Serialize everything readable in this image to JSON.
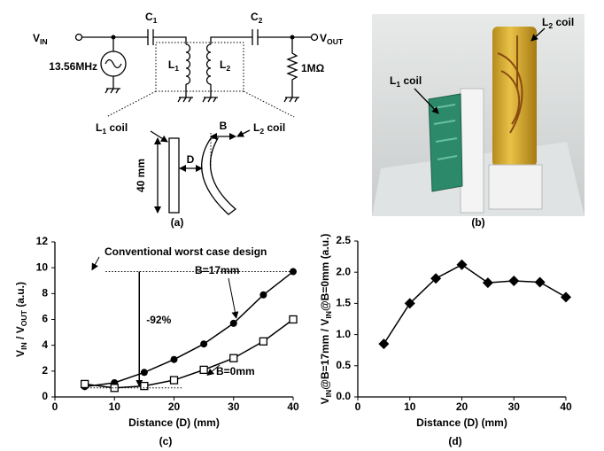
{
  "panel_a": {
    "caption": "(a)",
    "vin": [
      "V",
      "IN"
    ],
    "c1": [
      "C",
      "1"
    ],
    "c2": [
      "C",
      "2"
    ],
    "vout": [
      "V",
      "OUT"
    ],
    "source": "13.56MHz",
    "l1": [
      "L",
      "1"
    ],
    "l2": [
      "L",
      "2"
    ],
    "resistor": "1MΩ",
    "l1_coil": [
      "L",
      "1",
      " coil"
    ],
    "l2_coil": [
      "L",
      "2",
      " coil"
    ],
    "b": "B",
    "d": "D",
    "height": "40 mm"
  },
  "panel_b": {
    "caption": "(b)",
    "l1_coil": [
      "L",
      "1",
      " coil"
    ],
    "l2_coil": [
      "L",
      "2",
      " coil"
    ]
  },
  "chart_data": [
    {
      "type": "line",
      "caption": "(c)",
      "xlabel": "Distance (D) (mm)",
      "ylabel": [
        "V",
        "IN",
        " / V",
        "OUT",
        " (a.u.)"
      ],
      "x": [
        5,
        10,
        15,
        20,
        25,
        30,
        35,
        40
      ],
      "xlim": [
        0,
        40
      ],
      "xticks": [
        0,
        10,
        20,
        30,
        40
      ],
      "ylim": [
        0,
        12
      ],
      "yticks": [
        0,
        2,
        4,
        6,
        8,
        10,
        12
      ],
      "series": [
        {
          "name": "B=17mm",
          "color": "#000000",
          "marker": "circle",
          "values": [
            0.8,
            1.1,
            1.9,
            2.9,
            4.1,
            5.7,
            7.9,
            9.7
          ]
        },
        {
          "name": "B=0mm",
          "color": "#000000",
          "marker": "square-open",
          "values": [
            1.0,
            0.7,
            0.85,
            1.3,
            2.1,
            3.0,
            4.3,
            6.0
          ]
        }
      ],
      "annotations": [
        "Conventional worst case design",
        "-92%"
      ]
    },
    {
      "type": "line",
      "caption": "(d)",
      "xlabel": "Distance (D) (mm)",
      "ylabel": [
        "V",
        "IN",
        "@B=17mm / V",
        "IN",
        "@B=0mm (a.u.)"
      ],
      "x": [
        5,
        10,
        15,
        20,
        25,
        30,
        35,
        40
      ],
      "xlim": [
        0,
        40
      ],
      "xticks": [
        0,
        10,
        20,
        30,
        40
      ],
      "ylim": [
        0,
        2.5
      ],
      "yticks": [
        {
          "value": 0,
          "label": "0.0"
        },
        0.5,
        {
          "value": 1,
          "label": "1.0"
        },
        1.5,
        {
          "value": 2,
          "label": "2.0"
        },
        2.5
      ],
      "series": [
        {
          "color": "#000000",
          "marker": "diamond",
          "values": [
            0.85,
            1.5,
            1.9,
            2.12,
            1.83,
            1.86,
            1.84,
            1.6
          ]
        }
      ]
    }
  ]
}
